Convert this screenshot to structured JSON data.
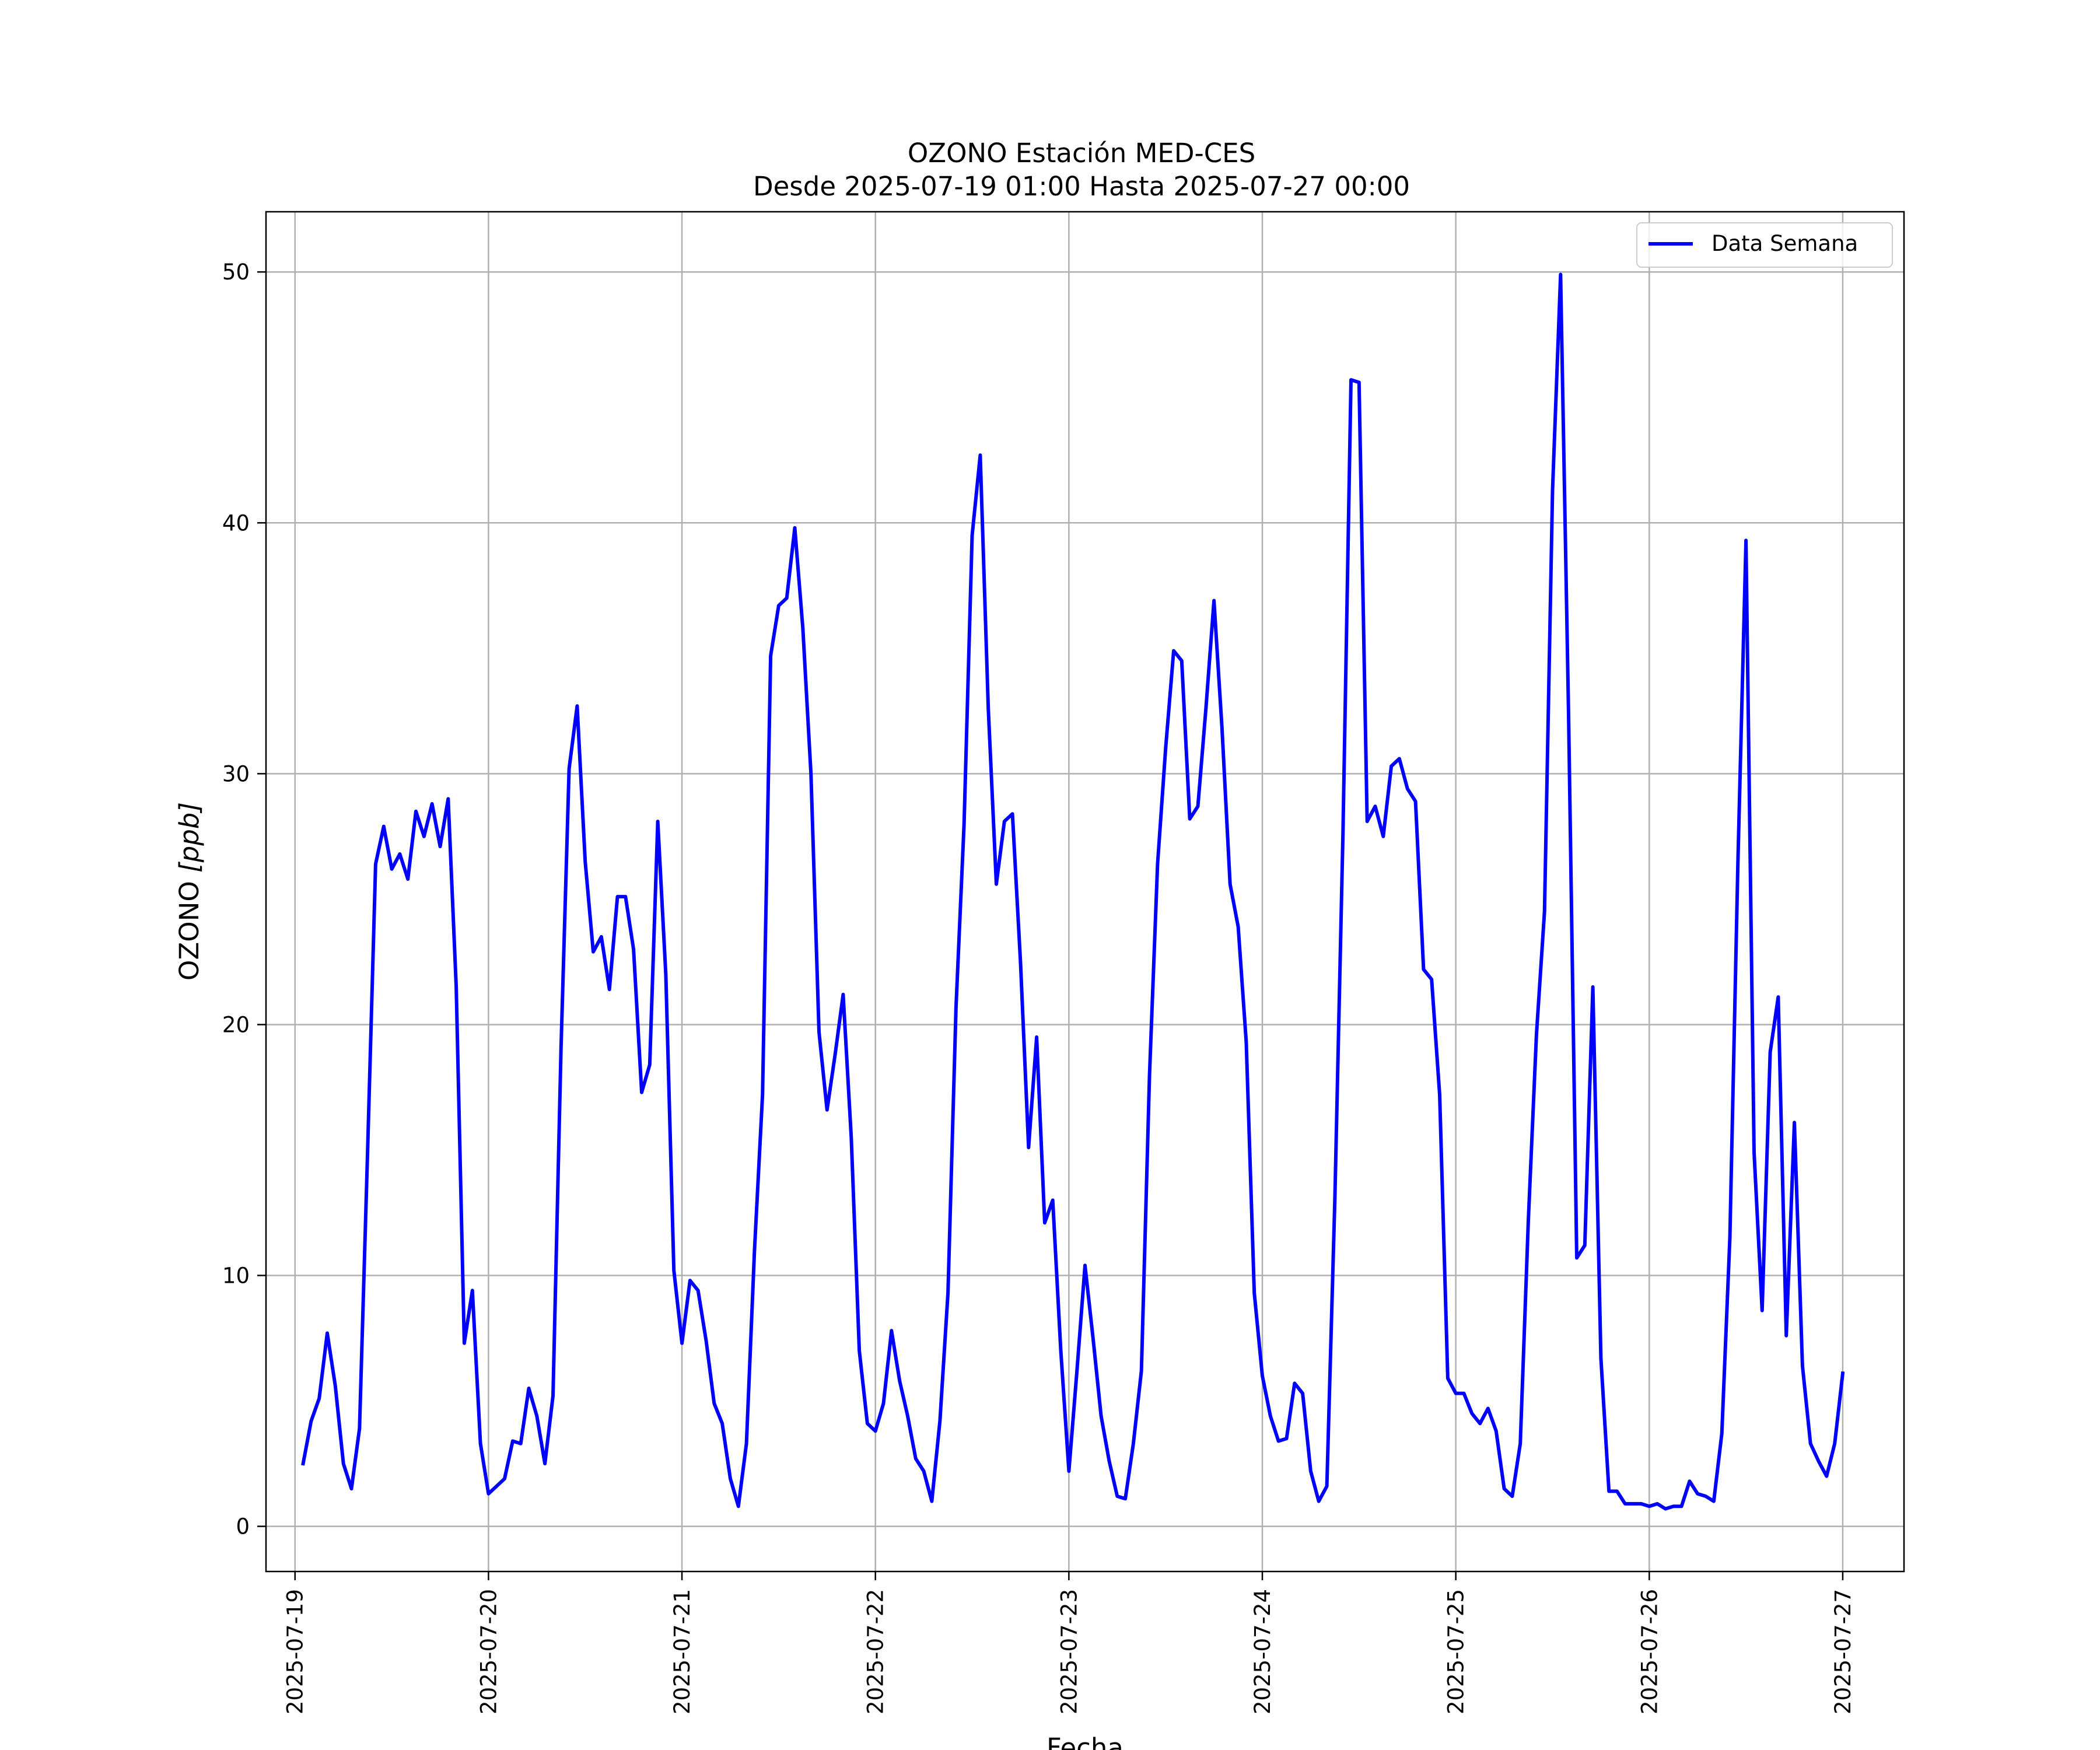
{
  "chart_data": {
    "type": "line",
    "title": "OZONO Estación MED-CES",
    "subtitle": "Desde 2025-07-19 01:00 Hasta 2025-07-27 00:00",
    "xlabel": "Fecha",
    "ylabel_main": "OZONO ",
    "ylabel_unit": "[ppb]",
    "x_range": [
      "2025-07-18T20:24",
      "2025-07-27T07:36"
    ],
    "ylim": [
      -1.8,
      52.4
    ],
    "grid": true,
    "legend_position": "top-right",
    "x_ticks": [
      {
        "value": "2025-07-19T00:00",
        "label": "2025-07-19"
      },
      {
        "value": "2025-07-20T00:00",
        "label": "2025-07-20"
      },
      {
        "value": "2025-07-21T00:00",
        "label": "2025-07-21"
      },
      {
        "value": "2025-07-22T00:00",
        "label": "2025-07-22"
      },
      {
        "value": "2025-07-23T00:00",
        "label": "2025-07-23"
      },
      {
        "value": "2025-07-24T00:00",
        "label": "2025-07-24"
      },
      {
        "value": "2025-07-25T00:00",
        "label": "2025-07-25"
      },
      {
        "value": "2025-07-26T00:00",
        "label": "2025-07-26"
      },
      {
        "value": "2025-07-27T00:00",
        "label": "2025-07-27"
      }
    ],
    "y_ticks": [
      {
        "value": 0,
        "label": "0"
      },
      {
        "value": 10,
        "label": "10"
      },
      {
        "value": 20,
        "label": "20"
      },
      {
        "value": 30,
        "label": "30"
      },
      {
        "value": 40,
        "label": "40"
      },
      {
        "value": 50,
        "label": "50"
      }
    ],
    "series": [
      {
        "name": "Data Semana",
        "color": "#0000ff",
        "x_start": "2025-07-19T01:00",
        "x_step_hours": 1,
        "values": [
          2.5,
          4.2,
          5.1,
          7.7,
          5.6,
          2.5,
          1.5,
          3.9,
          14.9,
          26.4,
          27.9,
          26.2,
          26.8,
          25.8,
          28.5,
          27.5,
          28.8,
          27.1,
          29.0,
          21.5,
          7.3,
          9.4,
          3.3,
          1.3,
          1.6,
          1.9,
          3.4,
          3.3,
          5.5,
          4.4,
          2.5,
          5.2,
          19.1,
          30.2,
          32.7,
          26.5,
          22.9,
          23.5,
          21.4,
          25.1,
          25.1,
          23.0,
          17.3,
          18.4,
          28.1,
          22.0,
          10.2,
          7.3,
          9.8,
          9.4,
          7.4,
          4.9,
          4.1,
          1.9,
          0.8,
          3.3,
          11.0,
          17.2,
          34.7,
          36.7,
          37.0,
          39.8,
          35.8,
          30.0,
          19.7,
          16.6,
          18.8,
          21.2,
          15.5,
          7.0,
          4.1,
          3.8,
          4.9,
          7.8,
          5.8,
          4.4,
          2.7,
          2.2,
          1.0,
          4.2,
          9.3,
          20.7,
          28.0,
          39.5,
          42.7,
          32.6,
          25.6,
          28.1,
          28.4,
          22.5,
          15.1,
          19.5,
          12.1,
          13.0,
          7.0,
          2.2,
          6.2,
          10.4,
          7.5,
          4.4,
          2.6,
          1.2,
          1.1,
          3.3,
          6.2,
          18.0,
          26.4,
          31.0,
          34.9,
          34.5,
          28.2,
          28.7,
          32.6,
          36.9,
          31.8,
          25.6,
          23.9,
          19.3,
          9.3,
          6.0,
          4.4,
          3.4,
          3.5,
          5.7,
          5.3,
          2.2,
          1.0,
          1.6,
          13.1,
          27.6,
          45.7,
          45.6,
          28.1,
          28.7,
          27.5,
          30.3,
          30.6,
          29.4,
          28.9,
          22.2,
          21.8,
          17.2,
          5.9,
          5.3,
          5.3,
          4.5,
          4.1,
          4.7,
          3.8,
          1.5,
          1.2,
          3.3,
          12.2,
          19.6,
          24.5,
          41.3,
          49.9,
          32.2,
          10.7,
          11.2,
          21.5,
          6.7,
          1.4,
          1.4,
          0.9,
          0.9,
          0.9,
          0.8,
          0.9,
          0.7,
          0.8,
          0.8,
          1.8,
          1.3,
          1.2,
          1.0,
          3.7,
          11.5,
          26.5,
          39.3,
          14.9,
          8.6,
          18.9,
          21.1,
          7.6,
          16.1,
          6.4,
          3.3,
          2.6,
          2.0,
          3.3,
          6.1
        ]
      }
    ]
  }
}
